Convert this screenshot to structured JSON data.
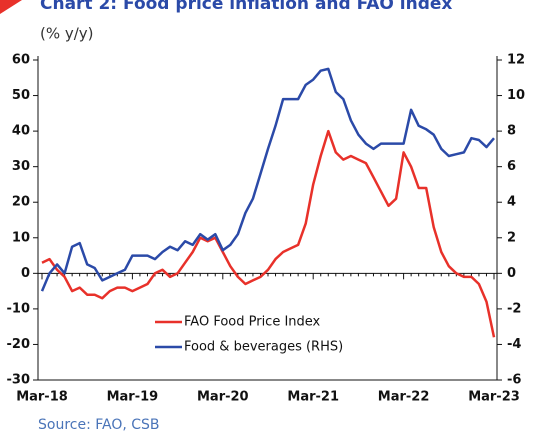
{
  "chart_data": {
    "type": "line",
    "title": "Chart 2: Food price inflation and FAO index",
    "subtitle": "(% y/y)",
    "source": "Source: FAO, CSB",
    "categories": [
      "Mar-18",
      null,
      null,
      null,
      null,
      null,
      null,
      null,
      null,
      null,
      null,
      null,
      "Mar-19",
      null,
      null,
      null,
      null,
      null,
      null,
      null,
      null,
      null,
      null,
      null,
      "Mar-20",
      null,
      null,
      null,
      null,
      null,
      null,
      null,
      null,
      null,
      null,
      null,
      "Mar-21",
      null,
      null,
      null,
      null,
      null,
      null,
      null,
      null,
      null,
      null,
      null,
      "Mar-22",
      null,
      null,
      null,
      null,
      null,
      null,
      null,
      null,
      null,
      null,
      null,
      "Mar-23"
    ],
    "series": [
      {
        "name": "FAO Food Price Index",
        "color": "#e8312a",
        "axis": "y",
        "values": [
          3,
          4,
          1,
          -1,
          -5,
          -4,
          -6,
          -6,
          -7,
          -5,
          -4,
          -4,
          -5,
          -4,
          -3,
          0,
          1,
          -1,
          0,
          3,
          6,
          10,
          9,
          10,
          6,
          2,
          -1,
          -3,
          -2,
          -1,
          1,
          4,
          6,
          7,
          8,
          14,
          25,
          33,
          40,
          34,
          32,
          33,
          32,
          31,
          27,
          23,
          19,
          21,
          34,
          30,
          24,
          24,
          13,
          6,
          2,
          0,
          -1,
          -1,
          -3,
          -8,
          -18
        ]
      },
      {
        "name": "Food & beverages (RHS)",
        "color": "#2b4aa8",
        "axis": "y2",
        "values": [
          -1,
          0,
          0.5,
          0,
          1.5,
          1.7,
          0.5,
          0.3,
          -0.4,
          -0.2,
          0,
          0.2,
          1,
          1,
          1,
          0.8,
          1.2,
          1.5,
          1.3,
          1.8,
          1.6,
          2.2,
          1.9,
          2.2,
          1.3,
          1.6,
          2.2,
          3.4,
          4.2,
          5.6,
          7,
          8.3,
          9.8,
          9.8,
          9.8,
          10.6,
          10.9,
          11.4,
          11.5,
          10.2,
          9.8,
          8.6,
          7.8,
          7.3,
          7,
          7.3,
          7.3,
          7.3,
          7.3,
          9.2,
          8.3,
          8.1,
          7.8,
          7,
          6.6,
          6.7,
          6.8,
          7.6,
          7.5,
          7.1,
          7.6
        ]
      }
    ],
    "ylim": [
      -30,
      60
    ],
    "yticks": [
      -30,
      -20,
      -10,
      0,
      10,
      20,
      30,
      40,
      50,
      60
    ],
    "y2lim": [
      -6,
      12
    ],
    "y2ticks": [
      -6,
      -4,
      -2,
      0,
      2,
      4,
      6,
      8,
      10,
      12
    ],
    "legend": "lower-left"
  }
}
